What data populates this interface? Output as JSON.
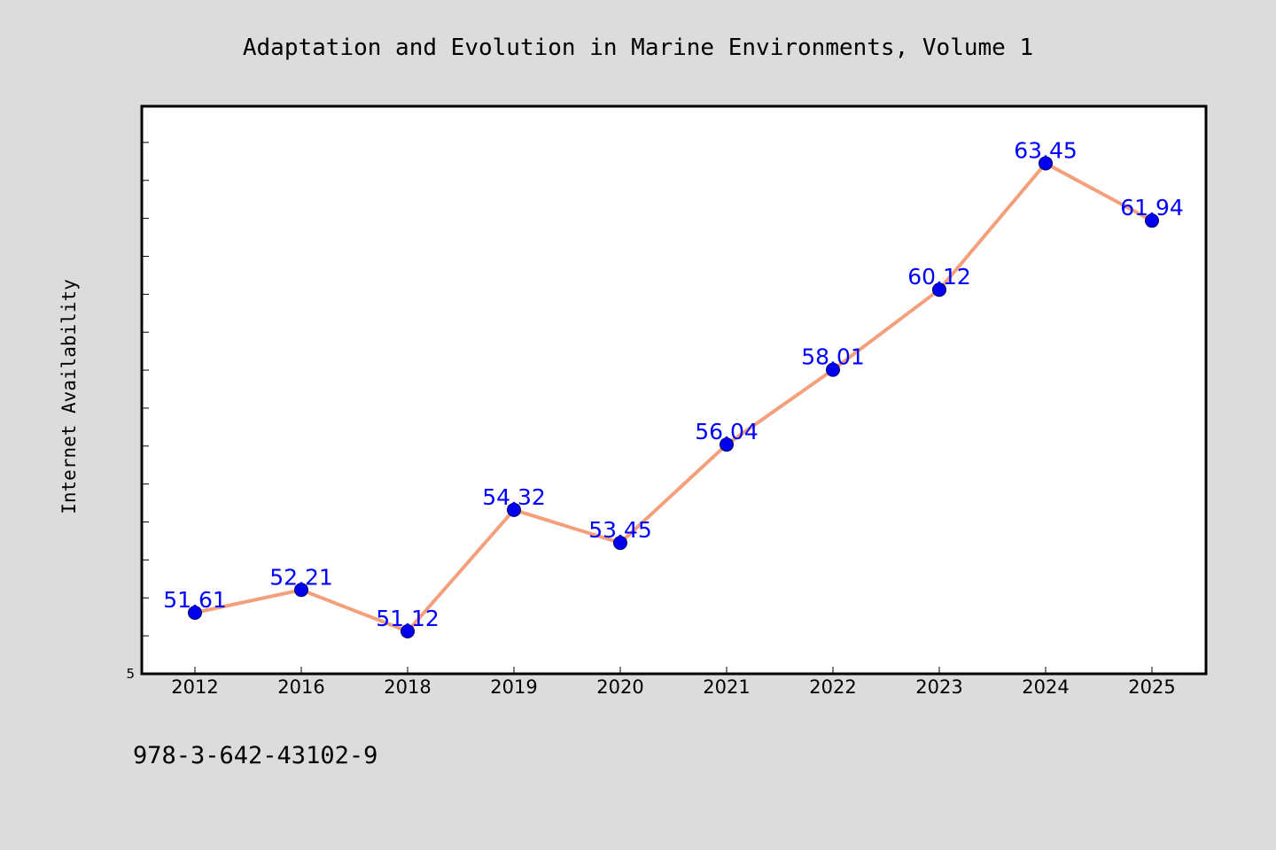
{
  "chart_data": {
    "type": "line",
    "title": "Adaptation and Evolution in Marine Environments, Volume 1",
    "xlabel": "",
    "ylabel": "Internet Availability",
    "categories": [
      "2012",
      "2016",
      "2018",
      "2019",
      "2020",
      "2021",
      "2022",
      "2023",
      "2024",
      "2025"
    ],
    "series": [
      {
        "values": [
          51.61,
          52.21,
          51.12,
          54.32,
          53.45,
          56.04,
          58.01,
          60.12,
          63.45,
          61.94
        ]
      }
    ],
    "data_labels": [
      "51.61",
      "52.21",
      "51.12",
      "54.32",
      "53.45",
      "56.04",
      "58.01",
      "60.12",
      "63.45",
      "61.94"
    ],
    "y_tick_label": "5",
    "ylim": [
      50.0,
      65.0
    ],
    "grid": false,
    "legend": "none",
    "colors": {
      "line": "#f4a07c",
      "marker": "#0000ee",
      "marker_edge": "#000066",
      "label": "#0000ff",
      "background": "#dcdcdc",
      "plot_background": "#ffffff"
    }
  },
  "footer": {
    "isbn": "978-3-642-43102-9"
  }
}
